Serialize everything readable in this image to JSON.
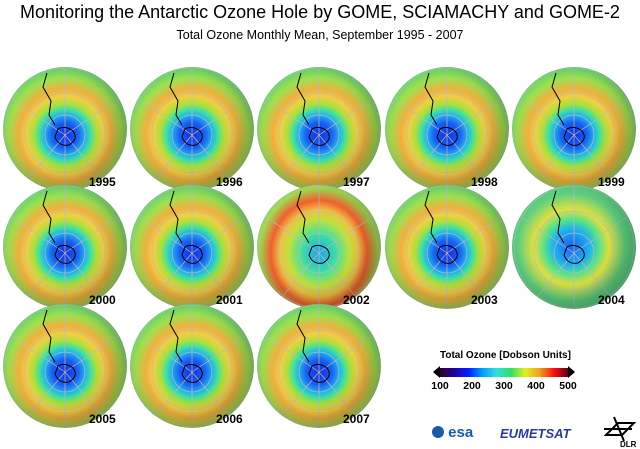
{
  "title": "Monitoring the Antarctic Ozone Hole by GOME, SCIAMACHY and GOME-2",
  "subtitle": "Total Ozone Monthly Mean, September 1995 - 2007",
  "years": [
    "1995",
    "1996",
    "1997",
    "1998",
    "1999",
    "2000",
    "2001",
    "2002",
    "2003",
    "2004",
    "2005",
    "2006",
    "2007"
  ],
  "legend": {
    "title": "Total Ozone [Dobson Units]",
    "ticks": [
      "100",
      "200",
      "300",
      "400",
      "500"
    ],
    "colors": [
      "#300020",
      "#0020ff",
      "#30e060",
      "#f0a020",
      "#ff1010",
      "#600010"
    ]
  },
  "logos": {
    "esa": "esa",
    "eumetsat": "EUMETSAT",
    "dlr": "DLR"
  }
}
